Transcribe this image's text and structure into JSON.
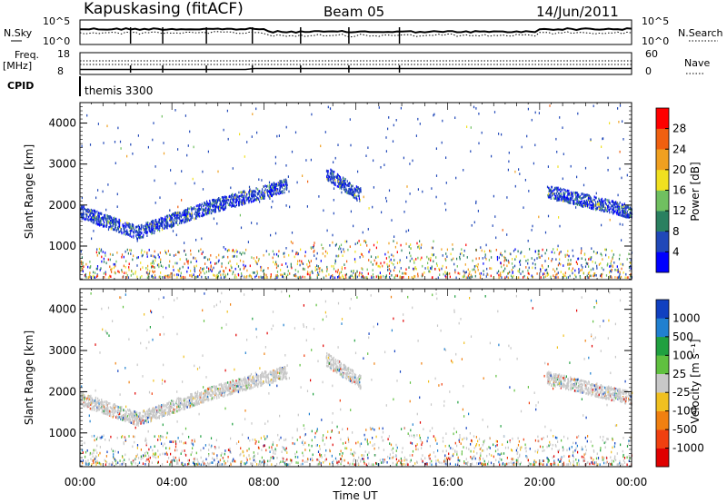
{
  "header": {
    "station": "Kapuskasing (fitACF)",
    "beam": "Beam 05",
    "date": "14/Jun/2011"
  },
  "nsky_panel": {
    "left_label": "N.Sky",
    "right_label": "N.Search",
    "ticks": [
      "10^5",
      "10^0"
    ]
  },
  "freq_panel": {
    "left_label_1": "Freq.",
    "left_label_2": "[MHz]",
    "left_ticks": [
      "18",
      "8"
    ],
    "right_label": "Nave",
    "right_ticks": [
      "60",
      "0"
    ]
  },
  "cpid": {
    "label": "CPID",
    "value": "themis 3300"
  },
  "time_axis": {
    "label": "Time UT",
    "ticks": [
      "00:00",
      "04:00",
      "08:00",
      "12:00",
      "16:00",
      "20:00",
      "00:00"
    ]
  },
  "chart_data": [
    {
      "type": "heatmap",
      "name": "power",
      "ylabel": "Slant Range [km]",
      "xlabel": "Time UT",
      "xlim": [
        0,
        24
      ],
      "ylim": [
        180,
        4500
      ],
      "yticks": [
        "1000",
        "2000",
        "3000",
        "4000"
      ],
      "colorbar": {
        "label": "Power [dB]",
        "tick_labels": [
          "4",
          "8",
          "12",
          "16",
          "20",
          "24",
          "28"
        ],
        "range": [
          0,
          32
        ],
        "colors": [
          "#0000ff",
          "#2048b8",
          "#2a8060",
          "#70c060",
          "#f0e020",
          "#f0a020",
          "#f06010",
          "#ff0000"
        ]
      },
      "features": [
        {
          "x0": 0.0,
          "x1": 2.5,
          "y_start": 1800,
          "y_end": 1300
        },
        {
          "x0": 2.5,
          "x1": 5.5,
          "y_start": 1300,
          "y_end": 1900
        },
        {
          "x0": 5.5,
          "x1": 9.0,
          "y_start": 1900,
          "y_end": 2450
        },
        {
          "x0": 10.7,
          "x1": 12.2,
          "y_start": 2750,
          "y_end": 2200
        },
        {
          "x0": 20.3,
          "x1": 24.0,
          "y_start": 2300,
          "y_end": 1800
        }
      ]
    },
    {
      "type": "heatmap",
      "name": "velocity",
      "ylabel": "Slant Range [km]",
      "xlabel": "Time UT",
      "xlim": [
        0,
        24
      ],
      "ylim": [
        180,
        4500
      ],
      "yticks": [
        "1000",
        "2000",
        "3000",
        "4000"
      ],
      "colorbar": {
        "label": "Velocity [m s⁻¹]",
        "tick_labels": [
          "1000",
          "500",
          "100",
          "25",
          "-25",
          "-100",
          "-500",
          "-1000"
        ],
        "colors": [
          "#1040c0",
          "#2080d0",
          "#20a040",
          "#60c040",
          "#c8c8c8",
          "#f0c020",
          "#f08010",
          "#f04010",
          "#e00000"
        ]
      }
    }
  ]
}
